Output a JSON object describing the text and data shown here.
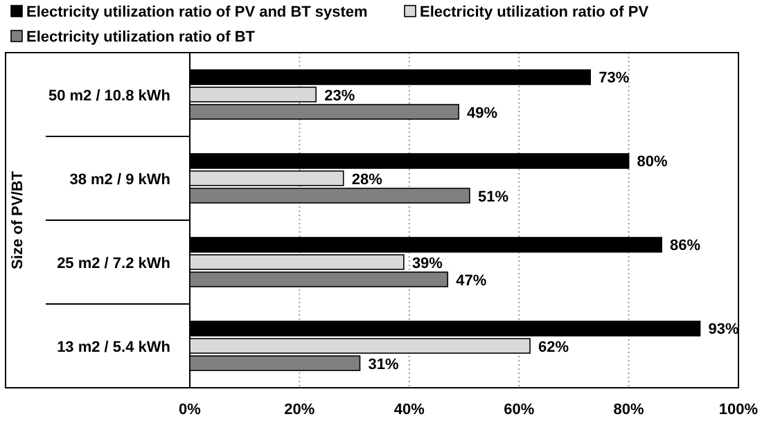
{
  "chart_data": {
    "type": "bar",
    "orientation": "horizontal",
    "ylabel": "Size of PV/BT",
    "categories": [
      "50 m2 / 10.8 kWh",
      "38 m2 / 9 kWh",
      "25 m2 / 7.2 kWh",
      "13 m2 / 5.4 kWh"
    ],
    "series": [
      {
        "name": "Electricity utilization ratio of PV and BT system",
        "color": "#000000",
        "values": [
          73,
          80,
          86,
          93
        ],
        "value_labels": [
          "73%",
          "80%",
          "86%",
          "93%"
        ]
      },
      {
        "name": "Electricity utilization ratio of PV",
        "color": "#d9d9d9",
        "values": [
          23,
          28,
          39,
          62
        ],
        "value_labels": [
          "23%",
          "28%",
          "39%",
          "62%"
        ]
      },
      {
        "name": "Electricity utilization ratio of BT",
        "color": "#808080",
        "values": [
          49,
          51,
          47,
          31
        ],
        "value_labels": [
          "49%",
          "51%",
          "47%",
          "31%"
        ]
      }
    ],
    "xlim": [
      0,
      100
    ],
    "xticks": [
      {
        "value": 0,
        "label": "0%"
      },
      {
        "value": 20,
        "label": "20%"
      },
      {
        "value": 40,
        "label": "40%"
      },
      {
        "value": 60,
        "label": "60%"
      },
      {
        "value": 80,
        "label": "80%"
      },
      {
        "value": 100,
        "label": "100%"
      }
    ],
    "grid": "x",
    "legend": "top"
  }
}
